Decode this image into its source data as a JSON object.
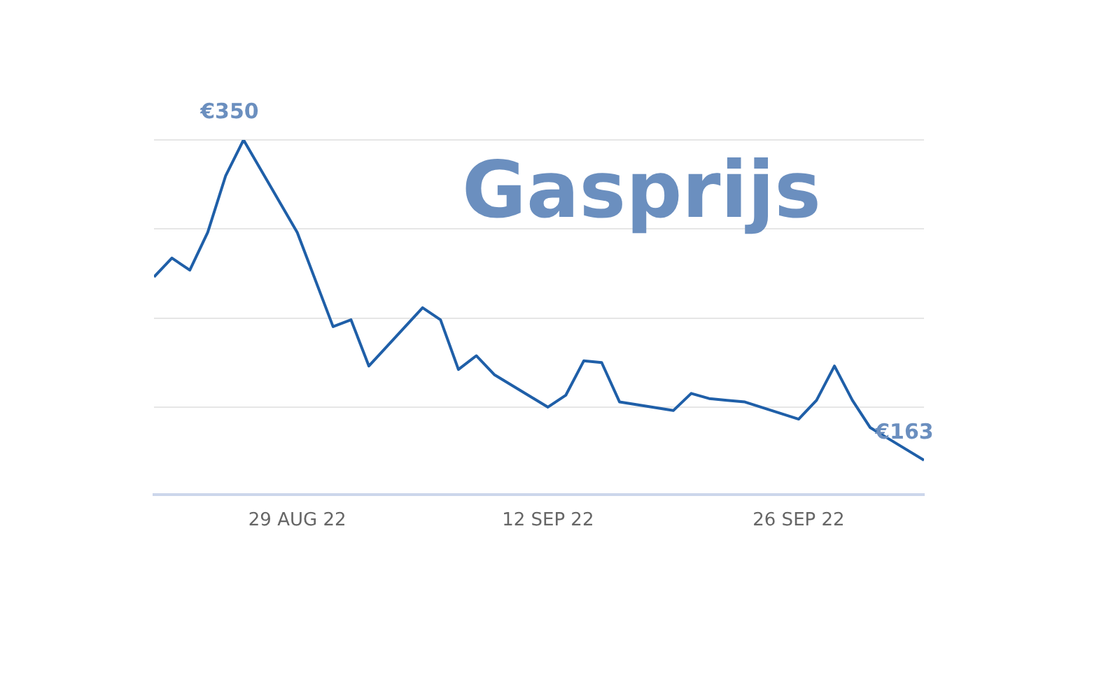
{
  "chart_data": {
    "type": "line",
    "title": "Gasprijs",
    "x": [
      "2022-08-21",
      "2022-08-22",
      "2022-08-23",
      "2022-08-24",
      "2022-08-25",
      "2022-08-26",
      "2022-08-29",
      "2022-08-31",
      "2022-09-01",
      "2022-09-02",
      "2022-09-05",
      "2022-09-06",
      "2022-09-07",
      "2022-09-08",
      "2022-09-09",
      "2022-09-12",
      "2022-09-13",
      "2022-09-14",
      "2022-09-15",
      "2022-09-16",
      "2022-09-19",
      "2022-09-20",
      "2022-09-21",
      "2022-09-22",
      "2022-09-23",
      "2022-09-26",
      "2022-09-27",
      "2022-09-28",
      "2022-09-29",
      "2022-09-30",
      "2022-10-03"
    ],
    "series": [
      {
        "color": "#1f5fa8",
        "values": [
          270,
          281,
          274,
          296,
          329,
          350,
          296,
          241,
          245,
          218,
          252,
          245,
          216,
          224,
          213,
          194,
          201,
          221,
          220,
          197,
          192,
          202,
          199,
          198,
          197,
          187,
          198,
          218,
          198,
          182,
          163
        ],
        "value_labels": [
          null,
          null,
          null,
          null,
          null,
          "€350",
          null,
          null,
          null,
          null,
          null,
          null,
          null,
          null,
          null,
          null,
          null,
          null,
          null,
          null,
          null,
          null,
          null,
          null,
          null,
          null,
          null,
          null,
          null,
          null,
          "€163"
        ]
      }
    ],
    "xlim": [
      "2022-08-21",
      "2022-10-03"
    ],
    "xticks": [
      {
        "value": "2022-08-29",
        "label": "29 AUG 22"
      },
      {
        "value": "2022-09-12",
        "label": "12 SEP 22"
      },
      {
        "value": "2022-09-26",
        "label": "26 SEP 22"
      }
    ],
    "ylim": [
      143,
      350
    ],
    "yticks": [
      {
        "value": 194,
        "label": null
      },
      {
        "value": 246,
        "label": null
      },
      {
        "value": 298,
        "label": null
      },
      {
        "value": 350,
        "label": null
      }
    ],
    "grid": "y",
    "tick_labels": "x",
    "legend": false,
    "marker": "none",
    "line_style": "solid"
  }
}
